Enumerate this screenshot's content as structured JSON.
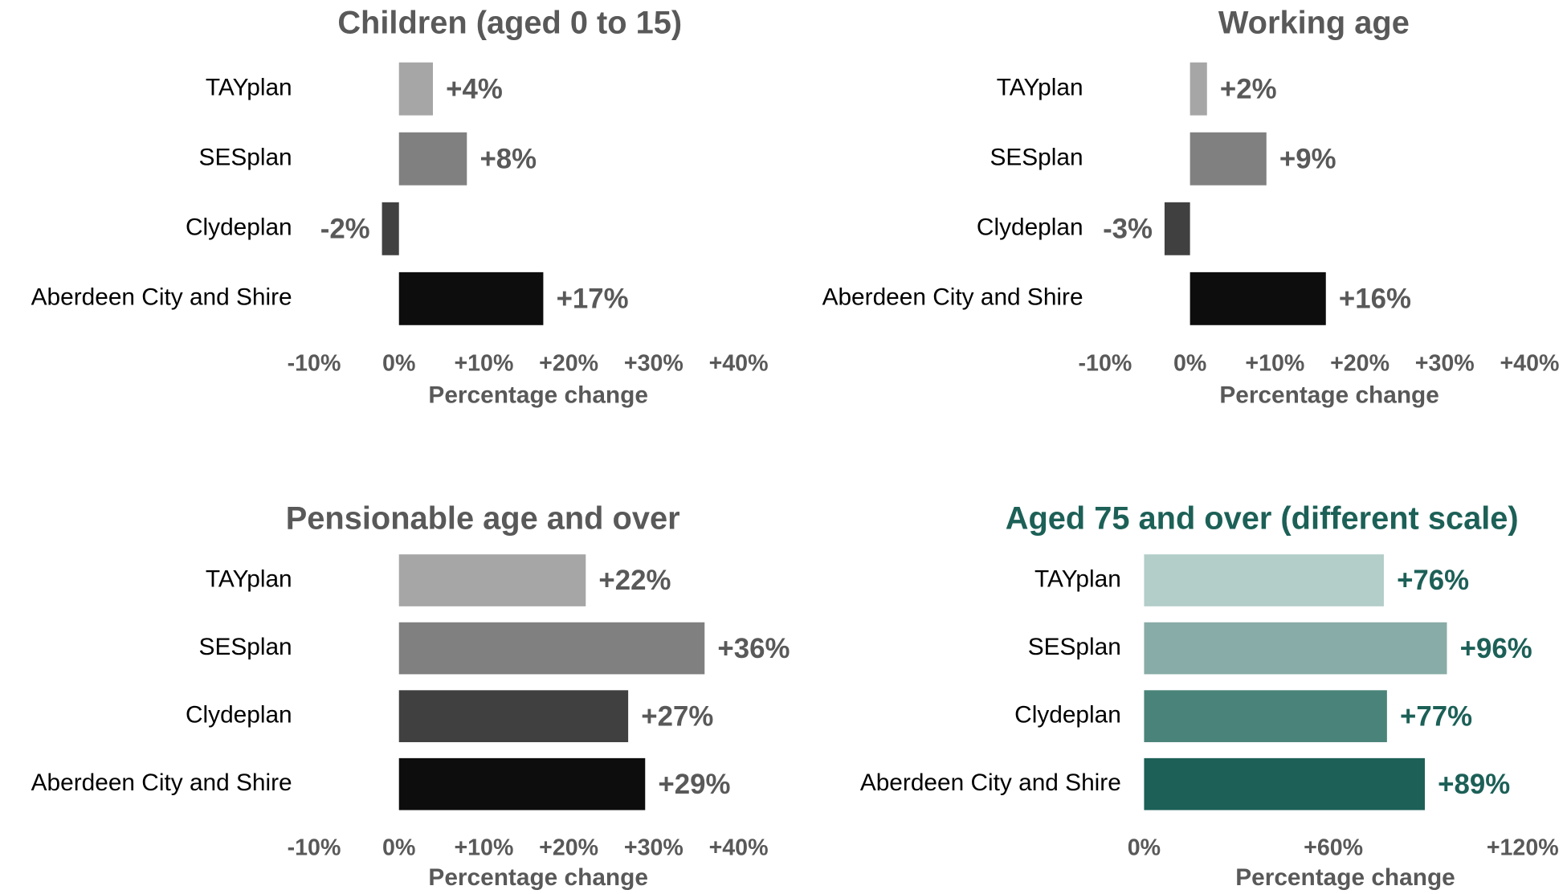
{
  "chart_data": [
    {
      "type": "bar",
      "title": "Children (aged 0 to 15)",
      "title_color": "#595959",
      "categories": [
        "TAYplan",
        "SESplan",
        "Clydeplan",
        "Aberdeen City and Shire"
      ],
      "values": [
        4,
        8,
        -2,
        17
      ],
      "value_labels": [
        "+4%",
        "+8%",
        "-2%",
        "+17%"
      ],
      "colors": [
        "#a6a6a6",
        "#808080",
        "#404040",
        "#0d0d0d"
      ],
      "label_color": "#595959",
      "xlim": [
        -10,
        40
      ],
      "xticks": [
        {
          "value": -10,
          "label": "-10%"
        },
        {
          "value": 0,
          "label": "0%"
        },
        {
          "value": 10,
          "label": "+10%"
        },
        {
          "value": 20,
          "label": "+20%"
        },
        {
          "value": 30,
          "label": "+30%"
        },
        {
          "value": 40,
          "label": "+40%"
        }
      ],
      "xlabel": "Percentage change"
    },
    {
      "type": "bar",
      "title": "Working age",
      "title_color": "#595959",
      "categories": [
        "TAYplan",
        "SESplan",
        "Clydeplan",
        "Aberdeen City and Shire"
      ],
      "values": [
        2,
        9,
        -3,
        16
      ],
      "value_labels": [
        "+2%",
        "+9%",
        "-3%",
        "+16%"
      ],
      "colors": [
        "#a6a6a6",
        "#808080",
        "#404040",
        "#0d0d0d"
      ],
      "label_color": "#595959",
      "xlim": [
        -10,
        40
      ],
      "xticks": [
        {
          "value": -10,
          "label": "-10%"
        },
        {
          "value": 0,
          "label": "0%"
        },
        {
          "value": 10,
          "label": "+10%"
        },
        {
          "value": 20,
          "label": "+20%"
        },
        {
          "value": 30,
          "label": "+30%"
        },
        {
          "value": 40,
          "label": "+40%"
        }
      ],
      "xlabel": "Percentage change"
    },
    {
      "type": "bar",
      "title": "Pensionable age and over",
      "title_color": "#595959",
      "categories": [
        "TAYplan",
        "SESplan",
        "Clydeplan",
        "Aberdeen City and Shire"
      ],
      "values": [
        22,
        36,
        27,
        29
      ],
      "value_labels": [
        "+22%",
        "+36%",
        "+27%",
        "+29%"
      ],
      "colors": [
        "#a6a6a6",
        "#808080",
        "#404040",
        "#0d0d0d"
      ],
      "label_color": "#595959",
      "xlim": [
        -10,
        40
      ],
      "xticks": [
        {
          "value": -10,
          "label": "-10%"
        },
        {
          "value": 0,
          "label": "0%"
        },
        {
          "value": 10,
          "label": "+10%"
        },
        {
          "value": 20,
          "label": "+20%"
        },
        {
          "value": 30,
          "label": "+30%"
        },
        {
          "value": 40,
          "label": "+40%"
        }
      ],
      "xlabel": "Percentage change"
    },
    {
      "type": "bar",
      "title": "Aged 75 and over (different scale)",
      "title_color": "#1c6057",
      "categories": [
        "TAYplan",
        "SESplan",
        "Clydeplan",
        "Aberdeen City and Shire"
      ],
      "values": [
        76,
        96,
        77,
        89
      ],
      "value_labels": [
        "+76%",
        "+96%",
        "+77%",
        "+89%"
      ],
      "colors": [
        "#b3cdc9",
        "#88aca7",
        "#4a837a",
        "#1c6057"
      ],
      "label_color": "#1c6057",
      "xlim": [
        0,
        120
      ],
      "xticks": [
        {
          "value": 0,
          "label": "0%"
        },
        {
          "value": 60,
          "label": "+60%"
        },
        {
          "value": 120,
          "label": "+120%"
        }
      ],
      "xlabel": "Percentage change"
    }
  ]
}
